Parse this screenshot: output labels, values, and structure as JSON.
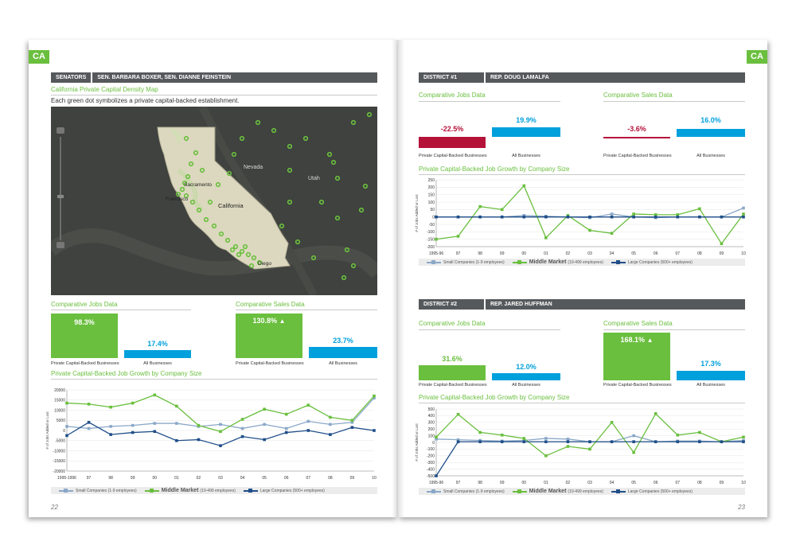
{
  "left": {
    "tag": "CA",
    "senators_label": "SENATORS",
    "senators_names": "SEN. BARBARA BOXER, SEN. DIANNE FEINSTEIN",
    "map_title": "California Private Capital Density Map",
    "map_note": "Each green dot symbolizes a private capital-backed establishment.",
    "map_labels": {
      "nevada": "Nevada",
      "utah": "Utah",
      "sacramento": "Sacramento",
      "francisco": "Francisco",
      "california": "California",
      "diego": "Diego"
    },
    "jobs": {
      "title": "Comparative Jobs Data",
      "pc_value": "98.3%",
      "all_value": "17.4%",
      "pc_label": "Private Capital-Backed Businesses",
      "all_label": "All Businesses",
      "pc_frac": 0.983,
      "all_frac": 0.174
    },
    "sales": {
      "title": "Comparative Sales Data",
      "pc_value": "130.8%",
      "all_value": "23.7%",
      "pc_label": "Private Capital-Backed Businesses",
      "all_label": "All Businesses"
    },
    "growth_title": "Private Capital-Backed Job Growth by Company Size",
    "page_number": "22"
  },
  "right": {
    "tag": "CA",
    "d1": {
      "district": "DISTRICT #1",
      "rep": "REP. DOUG LAMALFA",
      "jobs": {
        "title": "Comparative Jobs Data",
        "pc_value": "-22.5%",
        "all_value": "19.9%",
        "pc_label": "Private Capital-Backed Businesses",
        "all_label": "All Businesses"
      },
      "sales": {
        "title": "Comparative Sales Data",
        "pc_value": "-3.6%",
        "all_value": "16.0%",
        "pc_label": "Private Capital-Backed Businesses",
        "all_label": "All Businesses"
      },
      "growth_title": "Private Capital-Backed Job Growth by Company Size"
    },
    "d2": {
      "district": "DISTRICT #2",
      "rep": "REP. JARED HUFFMAN",
      "jobs": {
        "title": "Comparative Jobs Data",
        "pc_value": "31.6%",
        "all_value": "12.0%",
        "pc_label": "Private Capital-Backed Businesses",
        "all_label": "All Businesses"
      },
      "sales": {
        "title": "Comparative Sales Data",
        "pc_value": "168.1%",
        "all_value": "17.3%",
        "pc_label": "Private Capital-Backed Businesses",
        "all_label": "All Businesses"
      },
      "growth_title": "Private Capital-Backed Job Growth by Company Size"
    },
    "page_number": "23"
  },
  "legend": {
    "small": "Small Companies",
    "small_sub": "(1-9 employees)",
    "middle": "Middle Market",
    "middle_sub": "(10-499 employees)",
    "large": "Large Companies",
    "large_sub": "(500+ employees)"
  },
  "colors": {
    "green": "#6abf3e",
    "blue": "#00a0dc",
    "red": "#b5123a",
    "small": "#8aa8c8",
    "large": "#1f4e89",
    "header": "#56595c"
  },
  "chart_data": [
    {
      "type": "line",
      "ylabel": "# of Jobs Added or Lost",
      "categories": [
        "1995-1996",
        "97",
        "98",
        "99",
        "00",
        "01",
        "02",
        "03",
        "04",
        "05",
        "06",
        "07",
        "08",
        "09",
        "10"
      ],
      "yticks": [
        20000,
        15000,
        10000,
        5000,
        0,
        -5000,
        -10000,
        -15000,
        -20000
      ],
      "ylim": [
        -20000,
        20000
      ],
      "series": [
        {
          "name": "Small Companies",
          "values": [
            2000,
            1000,
            2000,
            2500,
            3500,
            3500,
            2000,
            3000,
            1000,
            3000,
            1000,
            4500,
            3000,
            4000,
            16000
          ]
        },
        {
          "name": "Middle Market",
          "values": [
            13500,
            13000,
            11500,
            13500,
            17500,
            12000,
            2500,
            -500,
            5500,
            10500,
            8000,
            12500,
            6500,
            5000,
            17000
          ]
        },
        {
          "name": "Large Companies",
          "values": [
            -2500,
            4000,
            -2000,
            -1000,
            -500,
            -5000,
            -4500,
            -7500,
            -3000,
            -4500,
            -1000,
            0,
            -2000,
            1500,
            0
          ]
        }
      ]
    },
    {
      "type": "line",
      "ylabel": "# of Jobs Added or Lost",
      "categories": [
        "1995-96",
        "97",
        "98",
        "99",
        "00",
        "01",
        "02",
        "03",
        "04",
        "05",
        "06",
        "07",
        "08",
        "09",
        "10"
      ],
      "yticks": [
        250,
        200,
        150,
        100,
        50,
        0,
        -50,
        -100,
        -150,
        -200
      ],
      "ylim": [
        -200,
        250
      ],
      "series": [
        {
          "name": "Small Companies",
          "values": [
            0,
            0,
            0,
            0,
            10,
            5,
            0,
            -5,
            20,
            0,
            -5,
            0,
            0,
            0,
            60
          ]
        },
        {
          "name": "Middle Market",
          "values": [
            -150,
            -130,
            70,
            50,
            210,
            -140,
            10,
            -90,
            -110,
            20,
            15,
            15,
            55,
            -180,
            20
          ]
        },
        {
          "name": "Large Companies",
          "values": [
            0,
            0,
            0,
            0,
            0,
            0,
            0,
            0,
            0,
            0,
            0,
            0,
            0,
            0,
            0
          ]
        }
      ]
    },
    {
      "type": "line",
      "ylabel": "# of Jobs Added or Lost",
      "categories": [
        "1995-96",
        "97",
        "98",
        "99",
        "00",
        "01",
        "02",
        "03",
        "04",
        "05",
        "06",
        "07",
        "08",
        "09",
        "10"
      ],
      "yticks": [
        500,
        400,
        300,
        200,
        100,
        0,
        -100,
        -200,
        -300,
        -400,
        -500
      ],
      "ylim": [
        -500,
        500
      ],
      "series": [
        {
          "name": "Small Companies",
          "values": [
            50,
            40,
            30,
            20,
            30,
            60,
            50,
            10,
            10,
            100,
            10,
            20,
            20,
            10,
            30
          ]
        },
        {
          "name": "Middle Market",
          "values": [
            80,
            420,
            150,
            110,
            60,
            -200,
            -60,
            -100,
            300,
            -150,
            430,
            110,
            150,
            10,
            80
          ]
        },
        {
          "name": "Large Companies",
          "values": [
            -500,
            10,
            10,
            10,
            10,
            10,
            10,
            10,
            10,
            10,
            10,
            10,
            10,
            10,
            10
          ]
        }
      ]
    }
  ]
}
